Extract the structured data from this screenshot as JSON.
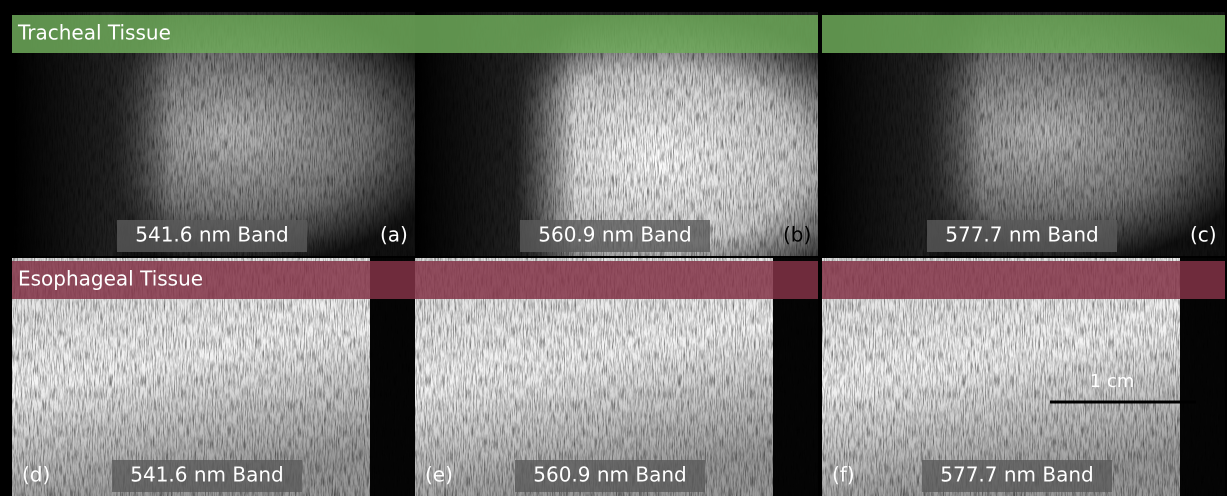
{
  "rows": [
    {
      "label": "Tracheal Tissue",
      "panels": [
        {
          "band": "541.6 nm Band",
          "id": "(a)"
        },
        {
          "band": "560.9 nm Band",
          "id": "(b)"
        },
        {
          "band": "577.7 nm Band",
          "id": "(c)"
        }
      ]
    },
    {
      "label": "Esophageal Tissue",
      "panels": [
        {
          "band": "541.6 nm Band",
          "id": "(d)"
        },
        {
          "band": "560.9 nm Band",
          "id": "(e)"
        },
        {
          "band": "577.7 nm Band",
          "id": "(f)"
        }
      ]
    }
  ],
  "scale_bar": "1 cm"
}
